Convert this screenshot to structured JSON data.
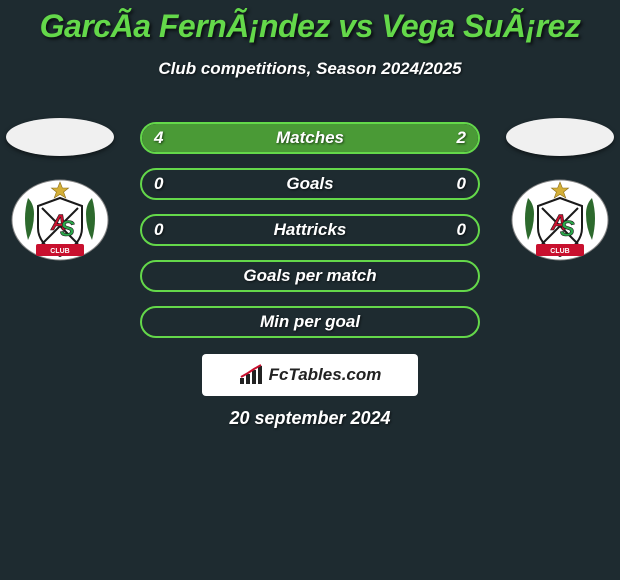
{
  "title": {
    "text": "GarcÃ­a FernÃ¡ndez vs Vega SuÃ¡rez",
    "color": "#64d84a"
  },
  "subtitle": "Club competitions, Season 2024/2025",
  "date": "20 september 2024",
  "brand": "FcTables.com",
  "background_color": "#1e2b30",
  "rows": [
    {
      "label": "Matches",
      "left": "4",
      "right": "2",
      "left_fill_pct": 67,
      "right_fill_pct": 33,
      "has_values": true
    },
    {
      "label": "Goals",
      "left": "0",
      "right": "0",
      "left_fill_pct": 0,
      "right_fill_pct": 0,
      "has_values": true
    },
    {
      "label": "Hattricks",
      "left": "0",
      "right": "0",
      "left_fill_pct": 0,
      "right_fill_pct": 0,
      "has_values": true
    },
    {
      "label": "Goals per match",
      "left": "",
      "right": "",
      "left_fill_pct": 0,
      "right_fill_pct": 0,
      "has_values": false
    },
    {
      "label": "Min per goal",
      "left": "",
      "right": "",
      "left_fill_pct": 0,
      "right_fill_pct": 0,
      "has_values": false
    }
  ],
  "row_style": {
    "border_color": "#64d84a",
    "left_fill_color": "#4a9a36",
    "right_fill_color": "#4a9a36",
    "text_color": "#ffffff",
    "fontsize": 17
  },
  "crest": {
    "bg": "#ffffff",
    "outline": "#1a1a1a",
    "banner": "#c8102e",
    "banner_text": "#ffffff",
    "star": "#d4af37",
    "laurel": "#2d6a2d"
  }
}
